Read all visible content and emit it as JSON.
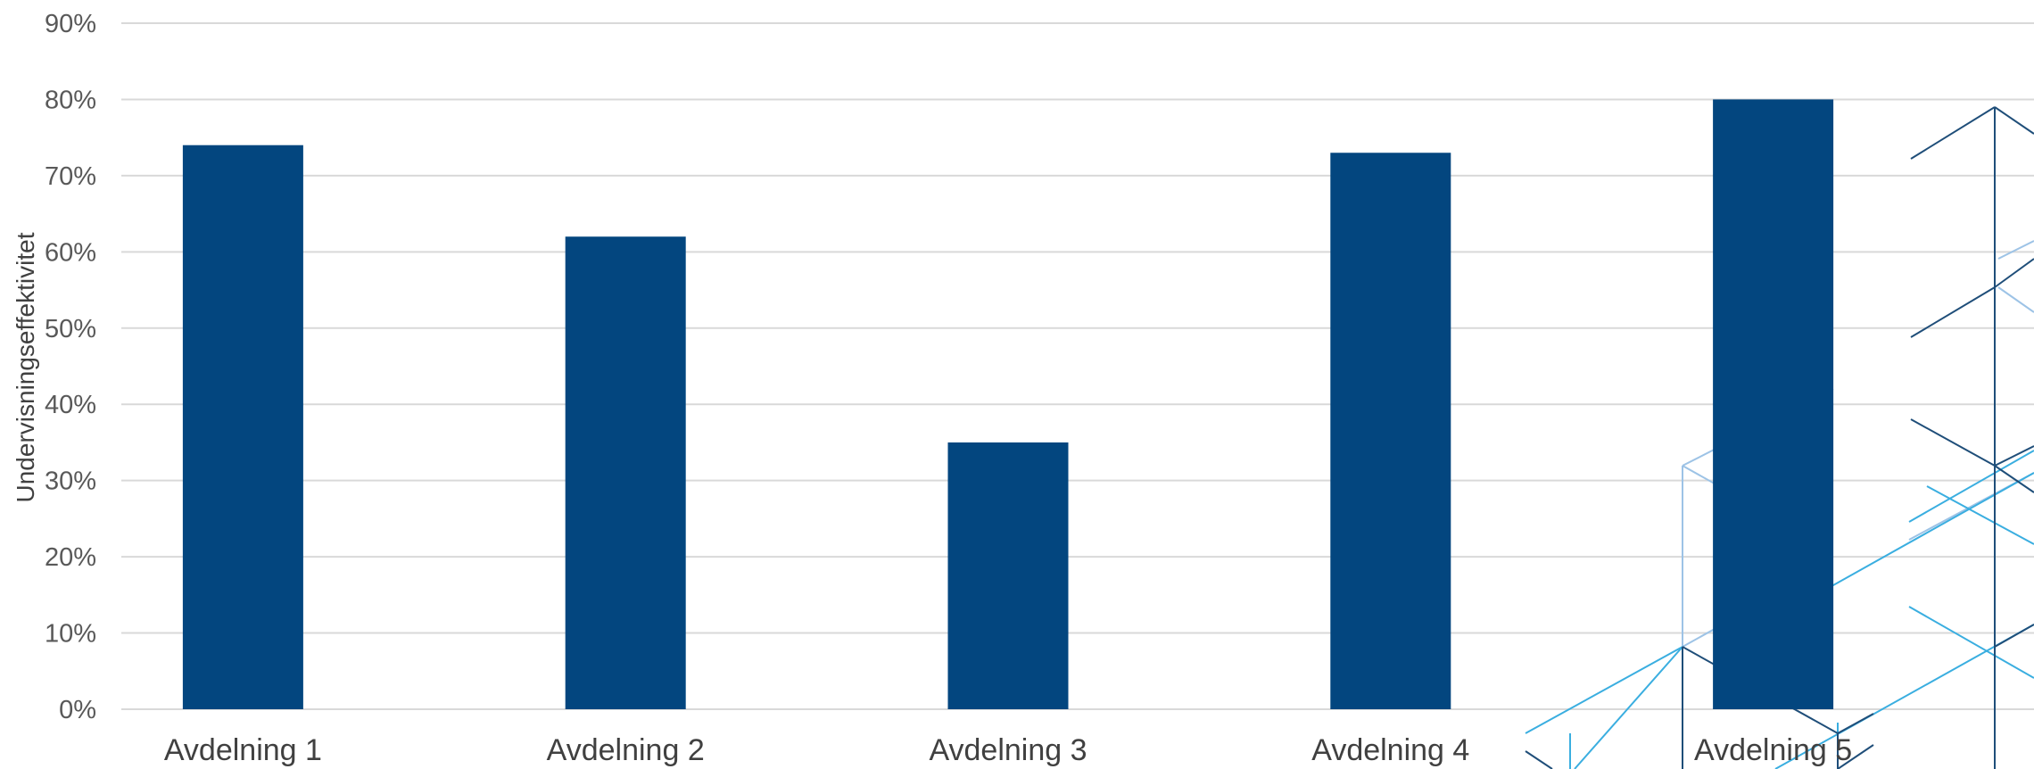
{
  "chart_data": {
    "type": "bar",
    "title": "",
    "xlabel": "",
    "ylabel": "Undervisningseffektivitet",
    "categories": [
      "Avdelning 1",
      "Avdelning 2",
      "Avdelning 3",
      "Avdelning 4",
      "Avdelning 5"
    ],
    "values": [
      74,
      62,
      35,
      73,
      80
    ],
    "value_format": "percent",
    "ylim": [
      0,
      90
    ],
    "yticks": [
      0,
      10,
      20,
      30,
      40,
      50,
      60,
      70,
      80,
      90
    ],
    "ytick_labels": [
      "0%",
      "10%",
      "20%",
      "30%",
      "40%",
      "50%",
      "60%",
      "70%",
      "80%",
      "90%"
    ],
    "grid": true,
    "legend": "none",
    "bar_color": "#03467f",
    "grid_color": "#d9d9d9",
    "decoration_colors": [
      "#1f4e79",
      "#3aaee0",
      "#9dc3e6"
    ]
  }
}
